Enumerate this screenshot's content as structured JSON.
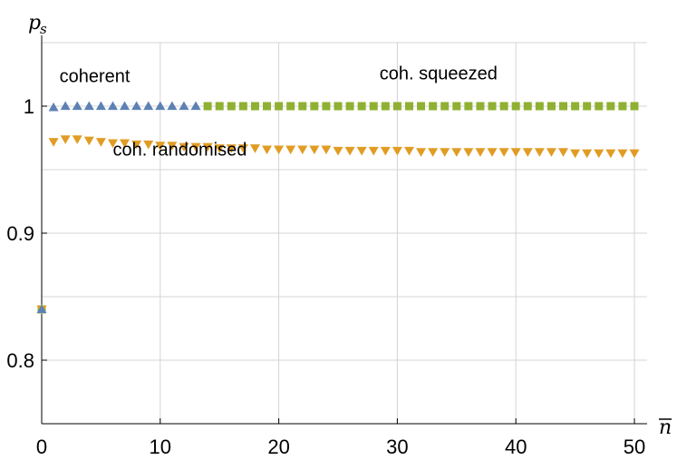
{
  "chart_data": {
    "type": "scatter",
    "xlabel": "n",
    "xlabel_overline": true,
    "ylabel": "p",
    "ylabel_sub": "s",
    "xlim": [
      0,
      50
    ],
    "ylim": [
      0.75,
      1.05
    ],
    "x_ticks": [
      0,
      10,
      20,
      30,
      40,
      50
    ],
    "x_tick_labels": [
      "0",
      "10",
      "20",
      "30",
      "40",
      "50"
    ],
    "y_ticks": [
      0.8,
      0.9,
      1.0
    ],
    "y_tick_labels": [
      "0.8",
      "0.9",
      "1"
    ],
    "grid": true,
    "x_gridlines": [
      10,
      20,
      30,
      40,
      50
    ],
    "y_gridlines": [
      0.8,
      0.85,
      0.9,
      0.95,
      1.0,
      1.05
    ],
    "annotations": [
      {
        "text": "coherent",
        "x": 1.5,
        "y": 1.019
      },
      {
        "text": "coh. squeezed",
        "x": 28.5,
        "y": 1.021
      },
      {
        "text": "coh. randomised",
        "x": 6,
        "y": 0.961
      }
    ],
    "series": [
      {
        "name": "coherent",
        "marker": "triangle-up",
        "color": "#5e81b5",
        "points": [
          [
            0,
            0.84
          ],
          [
            1,
            0.999
          ],
          [
            2,
            1
          ],
          [
            3,
            1
          ],
          [
            4,
            1
          ],
          [
            5,
            1
          ],
          [
            6,
            1
          ],
          [
            7,
            1
          ],
          [
            8,
            1
          ],
          [
            9,
            1
          ],
          [
            10,
            1
          ],
          [
            11,
            1
          ],
          [
            12,
            1
          ],
          [
            13,
            1
          ]
        ]
      },
      {
        "name": "coh. squeezed",
        "marker": "square",
        "color": "#8fb032",
        "points": [
          [
            0,
            0.84
          ],
          [
            14,
            1
          ],
          [
            15,
            1
          ],
          [
            16,
            1
          ],
          [
            17,
            1
          ],
          [
            18,
            1
          ],
          [
            19,
            1
          ],
          [
            20,
            1
          ],
          [
            21,
            1
          ],
          [
            22,
            1
          ],
          [
            23,
            1
          ],
          [
            24,
            1
          ],
          [
            25,
            1
          ],
          [
            26,
            1
          ],
          [
            27,
            1
          ],
          [
            28,
            1
          ],
          [
            29,
            1
          ],
          [
            30,
            1
          ],
          [
            31,
            1
          ],
          [
            32,
            1
          ],
          [
            33,
            1
          ],
          [
            34,
            1
          ],
          [
            35,
            1
          ],
          [
            36,
            1
          ],
          [
            37,
            1
          ],
          [
            38,
            1
          ],
          [
            39,
            1
          ],
          [
            40,
            1
          ],
          [
            41,
            1
          ],
          [
            42,
            1
          ],
          [
            43,
            1
          ],
          [
            44,
            1
          ],
          [
            45,
            1
          ],
          [
            46,
            1
          ],
          [
            47,
            1
          ],
          [
            48,
            1
          ],
          [
            49,
            1
          ],
          [
            50,
            1
          ]
        ]
      },
      {
        "name": "coh. randomised",
        "marker": "triangle-down",
        "color": "#e19c24",
        "points": [
          [
            0,
            0.84
          ],
          [
            1,
            0.972
          ],
          [
            2,
            0.974
          ],
          [
            3,
            0.974
          ],
          [
            4,
            0.973
          ],
          [
            5,
            0.972
          ],
          [
            6,
            0.971
          ],
          [
            7,
            0.971
          ],
          [
            8,
            0.97
          ],
          [
            9,
            0.97
          ],
          [
            10,
            0.969
          ],
          [
            11,
            0.969
          ],
          [
            12,
            0.968
          ],
          [
            13,
            0.968
          ],
          [
            14,
            0.968
          ],
          [
            15,
            0.967
          ],
          [
            16,
            0.967
          ],
          [
            17,
            0.967
          ],
          [
            18,
            0.967
          ],
          [
            19,
            0.966
          ],
          [
            20,
            0.966
          ],
          [
            21,
            0.966
          ],
          [
            22,
            0.966
          ],
          [
            23,
            0.966
          ],
          [
            24,
            0.966
          ],
          [
            25,
            0.965
          ],
          [
            26,
            0.965
          ],
          [
            27,
            0.965
          ],
          [
            28,
            0.965
          ],
          [
            29,
            0.965
          ],
          [
            30,
            0.965
          ],
          [
            31,
            0.965
          ],
          [
            32,
            0.964
          ],
          [
            33,
            0.964
          ],
          [
            34,
            0.964
          ],
          [
            35,
            0.964
          ],
          [
            36,
            0.964
          ],
          [
            37,
            0.964
          ],
          [
            38,
            0.964
          ],
          [
            39,
            0.964
          ],
          [
            40,
            0.964
          ],
          [
            41,
            0.964
          ],
          [
            42,
            0.964
          ],
          [
            43,
            0.964
          ],
          [
            44,
            0.964
          ],
          [
            45,
            0.963
          ],
          [
            46,
            0.963
          ],
          [
            47,
            0.963
          ],
          [
            48,
            0.963
          ],
          [
            49,
            0.963
          ],
          [
            50,
            0.963
          ]
        ]
      }
    ]
  }
}
